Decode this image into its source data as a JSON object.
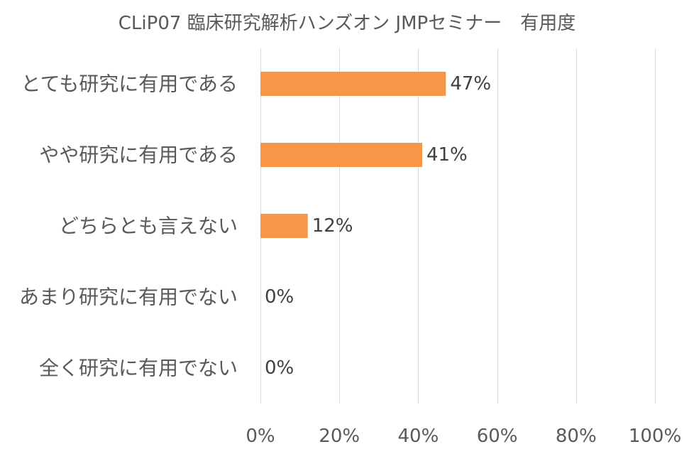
{
  "chart_data": {
    "type": "bar",
    "orientation": "horizontal",
    "title": "CLiP07 臨床研究解析ハンズオン JMPセミナー　有用度",
    "categories": [
      "とても研究に有用である",
      "やや研究に有用である",
      "どちらとも言えない",
      "あまり研究に有用でない",
      "全く研究に有用でない"
    ],
    "values": [
      47,
      41,
      12,
      0,
      0
    ],
    "data_labels": [
      "47%",
      "41%",
      "12%",
      "0%",
      "0%"
    ],
    "value_unit": "%",
    "xlim": [
      0,
      100
    ],
    "x_ticks": [
      0,
      20,
      40,
      60,
      80,
      100
    ],
    "x_tick_labels": [
      "0%",
      "20%",
      "40%",
      "60%",
      "80%",
      "100%"
    ],
    "grid": "vertical",
    "legend": "none",
    "bar_color": "#F79646",
    "text_color": "#595959",
    "grid_color": "#D9D9D9"
  }
}
